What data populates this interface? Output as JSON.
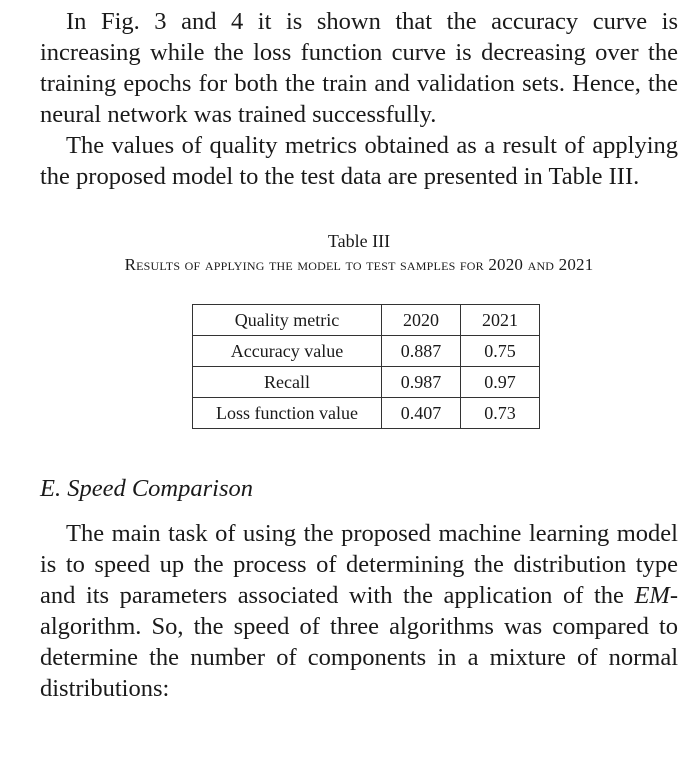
{
  "paragraphs_top": [
    "In Fig. 3 and 4 it is shown that the accuracy curve is increasing while the loss function curve is decreasing over the training epochs for both the train and validation sets. Hence, the neural network was trained successfully.",
    "The values of quality metrics obtained as a result of apply­ing the proposed model to the test data are presented in Table III."
  ],
  "table": {
    "label": "Table III",
    "title": "Results of applying the model to test samples for 2020 and 2021",
    "headers": [
      "Quality metric",
      "2020",
      "2021"
    ],
    "rows": [
      [
        "Accuracy value",
        "0.887",
        "0.75"
      ],
      [
        "Recall",
        "0.987",
        "0.97"
      ],
      [
        "Loss function value",
        "0.407",
        "0.73"
      ]
    ]
  },
  "section": {
    "heading": "E. Speed Comparison",
    "para_part1": "The main task of using the proposed machine learning model is to speed up the process of determining the distri­bution type and its parameters associated with the application of the ",
    "para_em": "EM",
    "para_part2": "-algorithm. So, the speed of three algorithms was compared to determine the number of components in a mixture of normal distributions:"
  }
}
